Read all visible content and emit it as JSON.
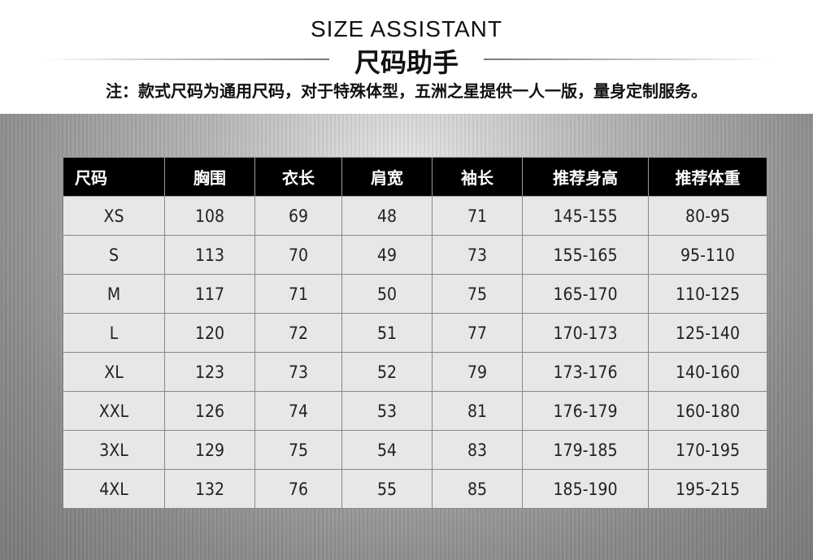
{
  "header": {
    "title_en": "SIZE ASSISTANT",
    "title_cn": "尺码助手",
    "note": "注：款式尺码为通用尺码，对于特殊体型，五洲之星提供一人一版，量身定制服务。"
  },
  "table": {
    "columns": [
      "尺码",
      "胸围",
      "衣长",
      "肩宽",
      "袖长",
      "推荐身高",
      "推荐体重"
    ],
    "rows": [
      [
        "XS",
        "108",
        "69",
        "48",
        "71",
        "145-155",
        "80-95"
      ],
      [
        "S",
        "113",
        "70",
        "49",
        "73",
        "155-165",
        "95-110"
      ],
      [
        "M",
        "117",
        "71",
        "50",
        "75",
        "165-170",
        "110-125"
      ],
      [
        "L",
        "120",
        "72",
        "51",
        "77",
        "170-173",
        "125-140"
      ],
      [
        "XL",
        "123",
        "73",
        "52",
        "79",
        "173-176",
        "140-160"
      ],
      [
        "XXL",
        "126",
        "74",
        "53",
        "81",
        "176-179",
        "160-180"
      ],
      [
        "3XL",
        "129",
        "75",
        "54",
        "83",
        "179-185",
        "170-195"
      ],
      [
        "4XL",
        "132",
        "76",
        "55",
        "85",
        "185-190",
        "195-215"
      ]
    ]
  }
}
